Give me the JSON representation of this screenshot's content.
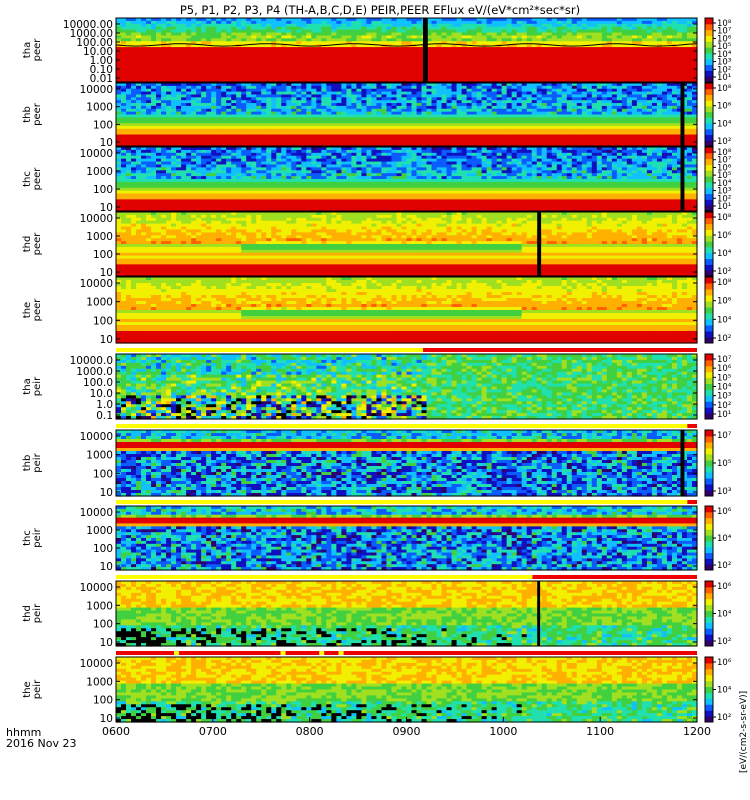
{
  "title": "P5, P1, P2, P3, P4 (TH-A,B,C,D,E) PEIR,PEER EFlux eV/(eV*cm²*sec*sr)",
  "colorbar_unit_label": "[eV/(cm2-s-sr-eV)]",
  "colorbar_unit_label_full": "[eV/(cm²-s-sr-eV)] eV/(eV*cm²*sec*sr)",
  "colors": {
    "scale": [
      "#30006a",
      "#1010c0",
      "#0a5cff",
      "#10c0ff",
      "#20e0b0",
      "#40d040",
      "#a0e020",
      "#f0f000",
      "#ffb000",
      "#ff6000",
      "#e00000"
    ],
    "flag_yellow": "#ffff00",
    "flag_red": "#ee0000"
  },
  "chart_data": {
    "type": "heatmap",
    "x_axis": {
      "tick_labels": [
        "0600",
        "0700",
        "0800",
        "0900",
        "1000",
        "1100",
        "1200"
      ],
      "range": [
        6.0,
        12.0
      ],
      "unit_label": "hhmm",
      "date_label": "2016 Nov 23"
    },
    "panels": [
      {
        "id": "tha_peer",
        "ylabel": [
          "tha",
          "peer"
        ],
        "yticks": [
          "10000.00",
          "1000.00",
          "100.00",
          "10.00",
          "1.00",
          "0.10",
          "0.01"
        ],
        "log_ylim": [
          -2,
          4.5
        ],
        "cbar_ticks": [
          "10⁸",
          "10⁷",
          "10⁶",
          "10⁵",
          "10⁴",
          "10³",
          "10²",
          "10¹"
        ],
        "regime": "tha_e",
        "black_bands": [
          [
            9.17,
            9.22
          ]
        ],
        "has_line_trace": true
      },
      {
        "id": "thb_peer",
        "ylabel": [
          "thb",
          "peer"
        ],
        "yticks": [
          "10000",
          "1000",
          "100",
          "10"
        ],
        "log_ylim": [
          0.8,
          4.4
        ],
        "cbar_ticks": [
          "10⁸",
          "10⁶",
          "10⁴",
          "10²"
        ],
        "regime": "e",
        "black_bands": [
          [
            11.83,
            11.87
          ]
        ]
      },
      {
        "id": "thc_peer",
        "ylabel": [
          "thc",
          "peer"
        ],
        "yticks": [
          "10000",
          "1000",
          "100",
          "10"
        ],
        "log_ylim": [
          0.8,
          4.4
        ],
        "cbar_ticks": [
          "10⁸",
          "10⁷",
          "10⁶",
          "10⁵",
          "10⁴",
          "10³",
          "10²",
          "10¹"
        ],
        "regime": "e",
        "black_bands": [
          [
            11.83,
            11.87
          ]
        ]
      },
      {
        "id": "thd_peer",
        "ylabel": [
          "thd",
          "peer"
        ],
        "yticks": [
          "10000",
          "1000",
          "100",
          "10"
        ],
        "log_ylim": [
          0.8,
          4.4
        ],
        "cbar_ticks": [
          "10⁸",
          "10⁶",
          "10⁴",
          "10²"
        ],
        "regime": "e_hot",
        "black_bands": [
          [
            10.35,
            10.39
          ]
        ]
      },
      {
        "id": "the_peer",
        "ylabel": [
          "the",
          "peer"
        ],
        "yticks": [
          "10000",
          "1000",
          "100",
          "10"
        ],
        "log_ylim": [
          0.8,
          4.4
        ],
        "cbar_ticks": [
          "10⁸",
          "10⁶",
          "10⁴",
          "10²"
        ],
        "regime": "e_hot",
        "black_bands": []
      },
      {
        "id": "tha_peir",
        "ylabel": [
          "tha",
          "peir"
        ],
        "yticks": [
          "10000.0",
          "1000.0",
          "100.0",
          "10.0",
          "1.0",
          "0.1"
        ],
        "log_ylim": [
          -1.2,
          4.5
        ],
        "cbar_ticks": [
          "10⁷",
          "10⁶",
          "10⁵",
          "10⁴",
          "10³",
          "10²",
          "10¹"
        ],
        "regime": "tha_i",
        "black_bands": []
      },
      {
        "id": "thb_peir",
        "ylabel": [
          "thb",
          "peir"
        ],
        "yticks": [
          "10000",
          "1000",
          "100",
          "10"
        ],
        "log_ylim": [
          0.8,
          4.4
        ],
        "cbar_ticks": [
          "10⁷",
          "10⁵",
          "10³"
        ],
        "regime": "i",
        "black_bands": [
          [
            11.83,
            11.87
          ]
        ]
      },
      {
        "id": "thc_peir",
        "ylabel": [
          "thc",
          "peir"
        ],
        "yticks": [
          "10000",
          "1000",
          "100",
          "10"
        ],
        "log_ylim": [
          0.8,
          4.4
        ],
        "cbar_ticks": [
          "10⁶",
          "10⁴",
          "10²"
        ],
        "regime": "i",
        "black_bands": []
      },
      {
        "id": "thd_peir",
        "ylabel": [
          "thd",
          "peir"
        ],
        "yticks": [
          "10000",
          "1000",
          "100",
          "10"
        ],
        "log_ylim": [
          0.8,
          4.4
        ],
        "cbar_ticks": [
          "10⁶",
          "10⁴",
          "10²"
        ],
        "regime": "i_hot",
        "black_bands": [
          [
            10.35,
            10.38
          ]
        ]
      },
      {
        "id": "the_peir",
        "ylabel": [
          "the",
          "peir"
        ],
        "yticks": [
          "10000",
          "1000",
          "100",
          "10"
        ],
        "log_ylim": [
          0.8,
          4.4
        ],
        "cbar_ticks": [
          "10⁶",
          "10⁴",
          "10²"
        ],
        "regime": "i_hot",
        "black_bands": []
      }
    ],
    "mode_bars": [
      {
        "after_panel": 4,
        "segments": [
          {
            "from": 6.0,
            "to": 9.17,
            "color": "yellow"
          },
          {
            "from": 9.17,
            "to": 12.0,
            "color": "red"
          }
        ]
      },
      {
        "after_panel": 5,
        "segments": [
          {
            "from": 6.0,
            "to": 11.9,
            "color": "yellow"
          },
          {
            "from": 11.9,
            "to": 12.0,
            "color": "red"
          }
        ]
      },
      {
        "after_panel": 6,
        "segments": [
          {
            "from": 6.0,
            "to": 11.9,
            "color": "yellow"
          },
          {
            "from": 11.9,
            "to": 12.0,
            "color": "red"
          }
        ]
      },
      {
        "after_panel": 7,
        "segments": [
          {
            "from": 6.0,
            "to": 10.3,
            "color": "yellow"
          },
          {
            "from": 10.3,
            "to": 12.0,
            "color": "red"
          }
        ]
      },
      {
        "after_panel": 8,
        "segments": [
          {
            "from": 6.0,
            "to": 6.6,
            "color": "red"
          },
          {
            "from": 6.6,
            "to": 6.65,
            "color": "yellow"
          },
          {
            "from": 6.65,
            "to": 7.7,
            "color": "red"
          },
          {
            "from": 7.7,
            "to": 7.75,
            "color": "yellow"
          },
          {
            "from": 7.75,
            "to": 8.1,
            "color": "red"
          },
          {
            "from": 8.1,
            "to": 8.15,
            "color": "yellow"
          },
          {
            "from": 8.15,
            "to": 8.3,
            "color": "red"
          },
          {
            "from": 8.3,
            "to": 8.35,
            "color": "yellow"
          },
          {
            "from": 8.35,
            "to": 12.0,
            "color": "red"
          }
        ]
      }
    ]
  }
}
